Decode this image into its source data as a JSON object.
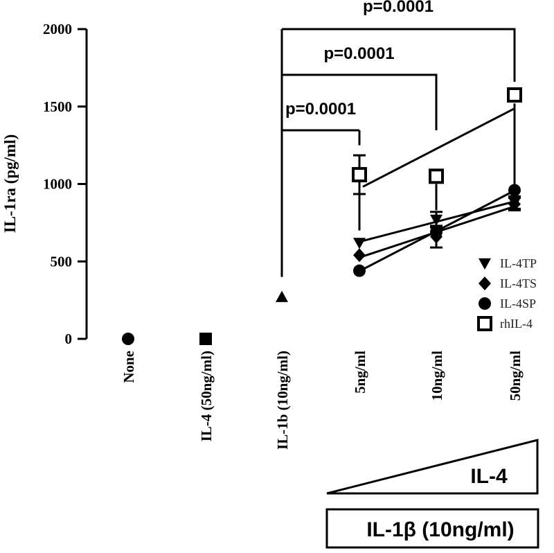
{
  "chart_data": {
    "type": "scatter",
    "ylabel": "IL-1ra (pg/ml)",
    "ylim": [
      0,
      2000
    ],
    "yticks": [
      "0",
      "500",
      "1000",
      "1500",
      "2000"
    ],
    "categories": [
      "None",
      "IL-4 (50ng/ml)",
      "IL-1b (10ng/ml)",
      "5ng/ml",
      "10ng/ml",
      "50ng/ml"
    ],
    "controls": [
      {
        "category": "None",
        "value": 0,
        "marker": "circle"
      },
      {
        "category": "IL-4 (50ng/ml)",
        "value": 0,
        "marker": "square-filled"
      },
      {
        "category": "IL-1b (10ng/ml)",
        "value": 270,
        "marker": "triangle-up"
      }
    ],
    "series": [
      {
        "name": "IL-4TP",
        "marker": "triangle-down",
        "categories": [
          "5ng/ml",
          "10ng/ml",
          "50ng/ml"
        ],
        "values": [
          620,
          770,
          880
        ],
        "errors": [
          0,
          50,
          40
        ]
      },
      {
        "name": "IL-4TS",
        "marker": "diamond",
        "categories": [
          "5ng/ml",
          "10ng/ml",
          "50ng/ml"
        ],
        "values": [
          540,
          660,
          870
        ],
        "errors": [
          0,
          70,
          40
        ]
      },
      {
        "name": "IL-4SP",
        "marker": "circle",
        "categories": [
          "5ng/ml",
          "10ng/ml",
          "50ng/ml"
        ],
        "values": [
          440,
          690,
          960
        ],
        "errors": [
          0,
          0,
          0
        ]
      },
      {
        "name": "rhIL-4",
        "marker": "square-open",
        "categories": [
          "5ng/ml",
          "10ng/ml",
          "50ng/ml"
        ],
        "values": [
          1060,
          1050,
          1575
        ],
        "errors": [
          125,
          0,
          0
        ]
      }
    ],
    "significance": [
      {
        "from": "IL-1b (10ng/ml)",
        "to": "5ng/ml",
        "label": "p=0.0001"
      },
      {
        "from": "IL-1b (10ng/ml)",
        "to": "10ng/ml",
        "label": "p=0.0001"
      },
      {
        "from": "IL-1b (10ng/ml)",
        "to": "50ng/ml",
        "label": "p=0.0001"
      }
    ],
    "legend_position": "right",
    "annotations": {
      "il4_gradient_label": "IL-4",
      "il1b_box_label": "IL-1β (10ng/ml)"
    }
  }
}
